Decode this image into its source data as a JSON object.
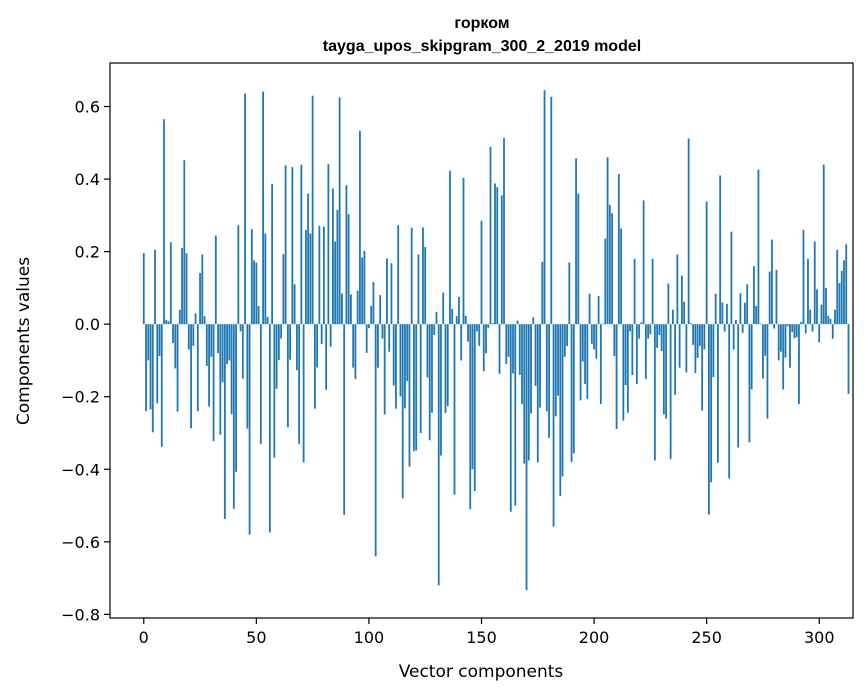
{
  "chart_data": {
    "type": "bar",
    "title_lines": [
      "горком",
      "tayga_upos_skipgram_300_2_2019 model"
    ],
    "xlabel": "Vector components",
    "ylabel": "Components values",
    "xlim": [
      -15,
      315
    ],
    "ylim": [
      -0.81,
      0.72
    ],
    "xticks": [
      0,
      50,
      100,
      150,
      200,
      250,
      300
    ],
    "yticks": [
      -0.8,
      -0.6,
      -0.4,
      -0.2,
      0.0,
      0.2,
      0.4,
      0.6
    ],
    "ytick_labels": [
      "−0.8",
      "−0.6",
      "−0.4",
      "−0.2",
      "0.0",
      "0.2",
      "0.4",
      "0.6"
    ],
    "xtick_labels": [
      "0",
      "50",
      "100",
      "150",
      "200",
      "250",
      "300"
    ],
    "bar_color": "#1f77b4",
    "grid": false,
    "values": [
      0.196,
      -0.24,
      -0.1,
      -0.235,
      -0.298,
      0.205,
      -0.218,
      -0.088,
      -0.338,
      0.565,
      0.012,
      0.008,
      0.226,
      -0.052,
      -0.122,
      -0.241,
      0.04,
      0.21,
      0.452,
      0.195,
      -0.07,
      -0.287,
      -0.06,
      0.03,
      -0.24,
      0.141,
      0.192,
      0.022,
      -0.115,
      -0.227,
      -0.09,
      -0.322,
      0.244,
      -0.08,
      -0.305,
      -0.16,
      -0.537,
      -0.11,
      -0.1,
      -0.248,
      -0.509,
      -0.407,
      0.273,
      -0.02,
      -0.15,
      0.636,
      -0.288,
      -0.58,
      0.262,
      0.176,
      0.17,
      0.05,
      -0.33,
      0.641,
      0.25,
      0.02,
      -0.574,
      0.387,
      -0.368,
      -0.178,
      -0.099,
      -0.04,
      0.193,
      0.438,
      -0.284,
      -0.098,
      0.433,
      0.11,
      -0.127,
      -0.33,
      0.439,
      -0.381,
      0.26,
      0.36,
      0.25,
      0.63,
      -0.233,
      -0.119,
      0.271,
      -0.055,
      0.269,
      -0.181,
      0.441,
      -0.062,
      0.374,
      0.228,
      0.315,
      0.625,
      0.085,
      -0.526,
      0.383,
      0.303,
      0.082,
      -0.12,
      -0.151,
      0.092,
      0.533,
      0.184,
      0.202,
      -0.079,
      -0.011,
      0.05,
      0.116,
      -0.64,
      -0.12,
      0.08,
      -0.04,
      -0.249,
      0.181,
      -0.076,
      0.168,
      -0.169,
      -0.233,
      0.273,
      -0.199,
      -0.48,
      -0.232,
      -0.157,
      -0.393,
      0.266,
      -0.35,
      -0.348,
      0.192,
      -0.3,
      0.267,
      0.213,
      -0.147,
      -0.32,
      -0.244,
      -0.03,
      0.034,
      -0.72,
      -0.362,
      0.087,
      -0.245,
      -0.226,
      0.423,
      0.042,
      -0.47,
      0.022,
      0.075,
      -0.1,
      0.403,
      0.023,
      -0.048,
      -0.51,
      -0.4,
      -0.46,
      -0.02,
      -0.06,
      0.285,
      -0.13,
      -0.08,
      -0.01,
      0.489,
      0.003,
      0.388,
      0.378,
      -0.137,
      0.355,
      0.513,
      -0.11,
      -0.09,
      -0.517,
      -0.136,
      -0.5,
      0.01,
      -0.14,
      -0.22,
      -0.384,
      -0.733,
      -0.376,
      -0.246,
      0.019,
      -0.17,
      -0.381,
      -0.23,
      0.172,
      0.645,
      -0.24,
      -0.313,
      0.627,
      -0.558,
      -0.254,
      -0.197,
      -0.474,
      -0.42,
      -0.09,
      -0.06,
      0.17,
      -0.38,
      -0.356,
      0.457,
      0.36,
      -0.21,
      -0.103,
      -0.165,
      -0.206,
      0.084,
      -0.054,
      -0.07,
      -0.095,
      0.078,
      -0.22,
      0.002,
      0.236,
      0.46,
      0.329,
      0.306,
      -0.088,
      -0.289,
      0.414,
      0.264,
      -0.266,
      -0.168,
      -0.244,
      -0.02,
      -0.14,
      0.18,
      -0.165,
      -0.04,
      0.005,
      0.341,
      -0.151,
      -0.04,
      -0.028,
      0.18,
      -0.376,
      -0.065,
      -0.03,
      -0.074,
      -0.249,
      -0.26,
      0.112,
      -0.372,
      0.04,
      -0.195,
      0.192,
      -0.12,
      0.134,
      0.062,
      -0.133,
      0.512,
      0.003,
      -0.057,
      -0.135,
      -0.093,
      -0.06,
      -0.238,
      -0.07,
      0.338,
      -0.525,
      -0.436,
      -0.146,
      0.084,
      -0.382,
      0.41,
      0.06,
      -0.02,
      0.056,
      -0.425,
      0.255,
      -0.07,
      0.012,
      -0.34,
      0.085,
      -0.024,
      0.059,
      0.11,
      -0.326,
      -0.18,
      0.16,
      0.05,
      0.426,
      0.002,
      -0.15,
      -0.087,
      -0.26,
      0.145,
      0.233,
      -0.012,
      0.15,
      -0.1,
      -0.076,
      -0.18,
      -0.092,
      -0.006,
      -0.12,
      -0.022,
      -0.039,
      -0.036,
      -0.22,
      0.006,
      0.26,
      -0.025,
      0.18,
      0.04,
      -0.02,
      0.228,
      0.096,
      -0.05,
      0.054,
      0.44,
      0.1,
      0.023,
      0.015,
      -0.04,
      0.04,
      0.205,
      0.113,
      0.147,
      0.176,
      0.22,
      -0.192
    ]
  }
}
